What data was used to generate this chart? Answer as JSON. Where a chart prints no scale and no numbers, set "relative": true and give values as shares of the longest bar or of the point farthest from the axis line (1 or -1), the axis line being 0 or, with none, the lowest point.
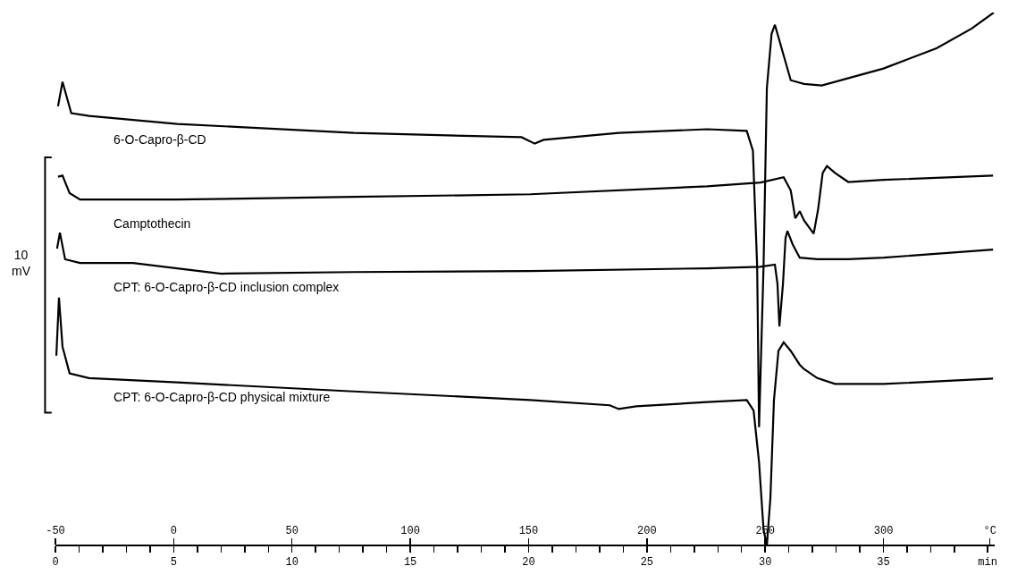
{
  "chart_data": {
    "type": "line",
    "relative": true,
    "marker": "none",
    "line_style": "solid",
    "grid": false,
    "legend": false,
    "xlim": [
      -50,
      347
    ],
    "xticks": [
      -50,
      0,
      50,
      100,
      150,
      200,
      250,
      300,
      {
        "value": 345,
        "label": "°C"
      }
    ],
    "x2lim": [
      0,
      39.7
    ],
    "x2ticks": [
      0,
      {
        "value": 1,
        "label": null
      },
      {
        "value": 2,
        "label": null
      },
      {
        "value": 3,
        "label": null
      },
      {
        "value": 4,
        "label": null
      },
      5,
      {
        "value": 6,
        "label": null
      },
      {
        "value": 7,
        "label": null
      },
      {
        "value": 8,
        "label": null
      },
      {
        "value": 9,
        "label": null
      },
      10,
      {
        "value": 11,
        "label": null
      },
      {
        "value": 12,
        "label": null
      },
      {
        "value": 13,
        "label": null
      },
      {
        "value": 14,
        "label": null
      },
      15,
      {
        "value": 16,
        "label": null
      },
      {
        "value": 17,
        "label": null
      },
      {
        "value": 18,
        "label": null
      },
      {
        "value": 19,
        "label": null
      },
      20,
      {
        "value": 21,
        "label": null
      },
      {
        "value": 22,
        "label": null
      },
      {
        "value": 23,
        "label": null
      },
      {
        "value": 24,
        "label": null
      },
      25,
      {
        "value": 26,
        "label": null
      },
      {
        "value": 27,
        "label": null
      },
      {
        "value": 28,
        "label": null
      },
      {
        "value": 29,
        "label": null
      },
      30,
      {
        "value": 31,
        "label": null
      },
      {
        "value": 32,
        "label": null
      },
      {
        "value": 33,
        "label": null
      },
      {
        "value": 34,
        "label": null
      },
      35,
      {
        "value": 36,
        "label": null
      },
      {
        "value": 37,
        "label": null
      },
      {
        "value": 38,
        "label": null
      },
      {
        "value": 39.4,
        "label": "min"
      }
    ],
    "annotations": [
      "10\nmV"
    ],
    "series": [
      {
        "name": "6-O-Capro-β-CD",
        "color": "#000000",
        "x": [
          -48.9,
          -47.0,
          -43.3,
          -35.8,
          1.5,
          76.1,
          147.0,
          152.6,
          156.3,
          188.1,
          225.4,
          242.2,
          244.8,
          246.6,
          247.4,
          249.3,
          250.7,
          252.7,
          254.1,
          260.8,
          266.4,
          273.9,
          300.0,
          322.4,
          337.3,
          346.6
        ],
        "values": [
          0.824,
          0.87,
          0.811,
          0.806,
          0.791,
          0.774,
          0.766,
          0.754,
          0.761,
          0.774,
          0.781,
          0.778,
          0.741,
          0.523,
          0.222,
          0.523,
          0.858,
          0.96,
          0.977,
          0.873,
          0.866,
          0.863,
          0.895,
          0.933,
          0.97,
          1.0
        ]
      },
      {
        "name": "Camptothecin",
        "color": "#000000",
        "x": [
          -48.9,
          -47.0,
          -44.0,
          -39.6,
          1.5,
          76.1,
          150.7,
          225.4,
          248.1,
          257.8,
          260.8,
          262.7,
          264.6,
          266.4,
          270.5,
          272.4,
          274.3,
          276.1,
          279.5,
          285.1,
          300.0,
          346.3
        ],
        "values": [
          0.692,
          0.694,
          0.661,
          0.649,
          0.649,
          0.654,
          0.659,
          0.674,
          0.681,
          0.691,
          0.666,
          0.614,
          0.627,
          0.61,
          0.585,
          0.632,
          0.699,
          0.712,
          0.699,
          0.682,
          0.686,
          0.694
        ]
      },
      {
        "name": "CPT: 6-O-Capro-β-CD inclusion complex",
        "color": "#000000",
        "x": [
          -49.3,
          -48.1,
          -45.9,
          -39.6,
          -17.2,
          20.1,
          76.1,
          150.7,
          225.4,
          247.8,
          254.1,
          255.2,
          256.0,
          257.5,
          258.6,
          259.4,
          261.6,
          264.6,
          272.0,
          285.1,
          300.0,
          346.3
        ],
        "values": [
          0.557,
          0.587,
          0.537,
          0.53,
          0.53,
          0.51,
          0.513,
          0.515,
          0.52,
          0.523,
          0.527,
          0.49,
          0.411,
          0.49,
          0.577,
          0.59,
          0.565,
          0.54,
          0.537,
          0.537,
          0.54,
          0.555
        ]
      },
      {
        "name": "CPT: 6-O-Capro-β-CD physical mixture",
        "color": "#000000",
        "x": [
          -49.6,
          -48.5,
          -47.0,
          -44.0,
          -35.8,
          1.5,
          76.1,
          150.7,
          184.3,
          188.1,
          195.5,
          225.4,
          242.2,
          245.1,
          247.4,
          249.3,
          250.7,
          252.2,
          253.7,
          255.6,
          257.8,
          260.8,
          264.6,
          266.4,
          272.0,
          279.5,
          300.0,
          346.3
        ],
        "values": [
          0.356,
          0.465,
          0.373,
          0.323,
          0.314,
          0.306,
          0.289,
          0.273,
          0.263,
          0.256,
          0.261,
          0.269,
          0.273,
          0.253,
          0.156,
          0.03,
          0.0,
          0.089,
          0.273,
          0.365,
          0.381,
          0.365,
          0.339,
          0.331,
          0.314,
          0.303,
          0.303,
          0.313
        ]
      }
    ]
  }
}
